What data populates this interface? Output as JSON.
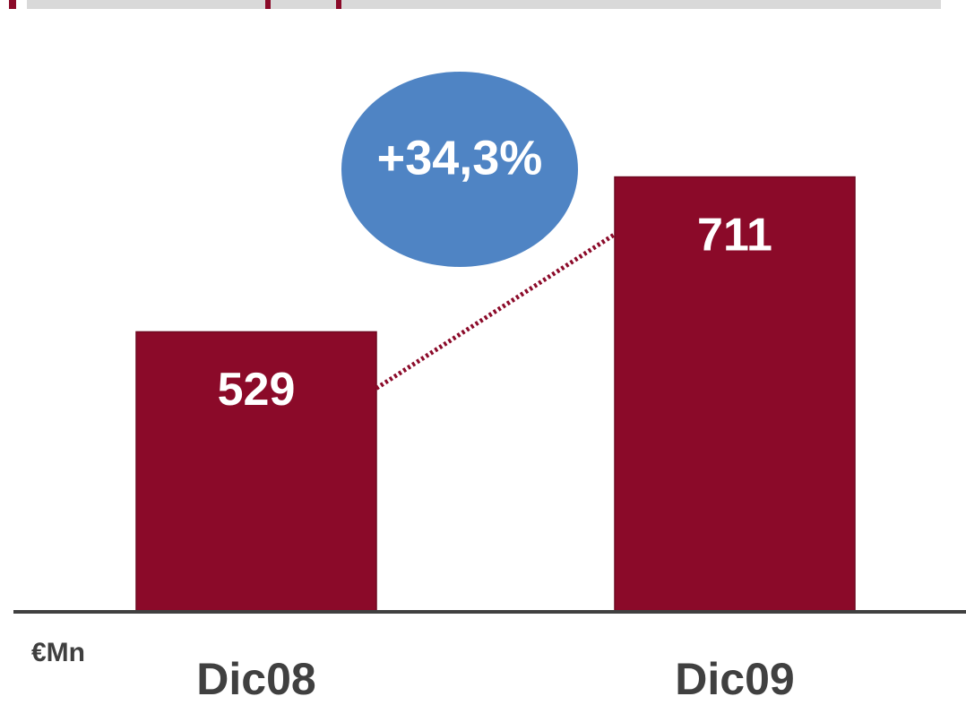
{
  "chart_data": {
    "type": "bar",
    "categories": [
      "Dic08",
      "Dic09"
    ],
    "values": [
      529,
      711
    ],
    "color": "#8b0a29",
    "ylim": [
      200,
      820
    ],
    "annotation": "+34,3%",
    "annotation_color": "#4f84c4",
    "unit_label": "€Mn"
  }
}
